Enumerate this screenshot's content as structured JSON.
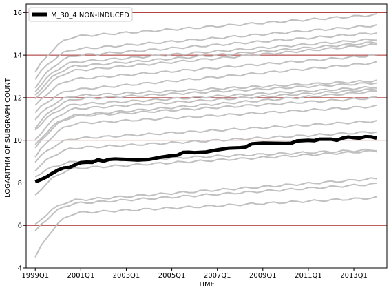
{
  "chart_data": {
    "type": "line",
    "title": "",
    "xlabel": "TIME",
    "ylabel": "LOGARITHM OF SUBGRAPH COUNT",
    "xlim": [
      1998.6,
      2014.45
    ],
    "ylim": [
      4,
      16.4
    ],
    "x_ticks": [
      {
        "value": 1999.0,
        "label": "1999Q1"
      },
      {
        "value": 2001.0,
        "label": "2001Q1"
      },
      {
        "value": 2003.0,
        "label": "2003Q1"
      },
      {
        "value": 2005.0,
        "label": "2005Q1"
      },
      {
        "value": 2007.0,
        "label": "2007Q1"
      },
      {
        "value": 2009.0,
        "label": "2009Q1"
      },
      {
        "value": 2011.0,
        "label": "2011Q1"
      },
      {
        "value": 2013.0,
        "label": "2013Q1"
      }
    ],
    "y_ticks": [
      4,
      6,
      8,
      10,
      12,
      14,
      16
    ],
    "grid": {
      "horizontal": true,
      "color": "#a52a2a"
    },
    "legend": {
      "position": "top-left",
      "entries": [
        {
          "label": "M_30_4 NON-INDUCED",
          "color": "#000000"
        }
      ]
    },
    "highlight_series": {
      "name": "M_30_4 NON-INDUCED",
      "color": "#000000",
      "points": [
        [
          1999.0,
          8.05
        ],
        [
          1999.25,
          8.15
        ],
        [
          1999.5,
          8.28
        ],
        [
          1999.75,
          8.45
        ],
        [
          2000.0,
          8.6
        ],
        [
          2000.25,
          8.7
        ],
        [
          2000.5,
          8.72
        ],
        [
          2000.75,
          8.85
        ],
        [
          2001.0,
          8.95
        ],
        [
          2001.25,
          8.97
        ],
        [
          2001.5,
          8.96
        ],
        [
          2001.75,
          9.08
        ],
        [
          2002.0,
          9.02
        ],
        [
          2002.25,
          9.1
        ],
        [
          2002.5,
          9.12
        ],
        [
          2003.0,
          9.1
        ],
        [
          2003.5,
          9.07
        ],
        [
          2004.0,
          9.1
        ],
        [
          2004.5,
          9.2
        ],
        [
          2005.0,
          9.28
        ],
        [
          2005.25,
          9.3
        ],
        [
          2005.5,
          9.43
        ],
        [
          2005.75,
          9.44
        ],
        [
          2006.0,
          9.42
        ],
        [
          2006.5,
          9.45
        ],
        [
          2007.0,
          9.55
        ],
        [
          2007.5,
          9.63
        ],
        [
          2008.0,
          9.65
        ],
        [
          2008.25,
          9.68
        ],
        [
          2008.5,
          9.83
        ],
        [
          2008.75,
          9.85
        ],
        [
          2009.0,
          9.87
        ],
        [
          2009.5,
          9.86
        ],
        [
          2010.0,
          9.85
        ],
        [
          2010.25,
          9.86
        ],
        [
          2010.5,
          9.97
        ],
        [
          2011.0,
          10.0
        ],
        [
          2011.25,
          9.98
        ],
        [
          2011.5,
          10.05
        ],
        [
          2012.0,
          10.05
        ],
        [
          2012.25,
          10.0
        ],
        [
          2012.5,
          10.1
        ],
        [
          2012.75,
          10.15
        ],
        [
          2013.0,
          10.12
        ],
        [
          2013.25,
          10.1
        ],
        [
          2013.5,
          10.17
        ],
        [
          2013.75,
          10.16
        ],
        [
          2014.0,
          10.1
        ]
      ]
    },
    "background_series_color": "#c0c0c0",
    "background_series": [
      {
        "start": 4.5,
        "end": 7.3,
        "knee": 6.6
      },
      {
        "start": 5.7,
        "end": 7.95,
        "knee": 7.05
      },
      {
        "start": 6.0,
        "end": 8.2,
        "knee": 7.2
      },
      {
        "start": 7.4,
        "end": 9.5,
        "knee": 8.7
      },
      {
        "start": 8.3,
        "end": 9.55,
        "knee": 9.0
      },
      {
        "start": 8.6,
        "end": 10.4,
        "knee": 9.65
      },
      {
        "start": 9.0,
        "end": 10.9,
        "knee": 10.1
      },
      {
        "start": 9.2,
        "end": 11.6,
        "knee": 10.8
      },
      {
        "start": 9.6,
        "end": 12.0,
        "knee": 11.15
      },
      {
        "start": 9.75,
        "end": 12.3,
        "knee": 11.2
      },
      {
        "start": 10.0,
        "end": 12.4,
        "knee": 11.5
      },
      {
        "start": 10.5,
        "end": 12.5,
        "knee": 11.7
      },
      {
        "start": 10.6,
        "end": 12.7,
        "knee": 11.95
      },
      {
        "start": 11.0,
        "end": 12.8,
        "knee": 12.1
      },
      {
        "start": 11.3,
        "end": 13.65,
        "knee": 12.4
      },
      {
        "start": 11.6,
        "end": 14.0,
        "knee": 12.9
      },
      {
        "start": 11.9,
        "end": 14.5,
        "knee": 13.3
      },
      {
        "start": 12.1,
        "end": 14.6,
        "knee": 13.5
      },
      {
        "start": 12.3,
        "end": 14.75,
        "knee": 13.7
      },
      {
        "start": 12.5,
        "end": 15.05,
        "knee": 14.0
      },
      {
        "start": 12.9,
        "end": 15.4,
        "knee": 14.3
      },
      {
        "start": 13.2,
        "end": 15.9,
        "knee": 14.9
      }
    ]
  }
}
